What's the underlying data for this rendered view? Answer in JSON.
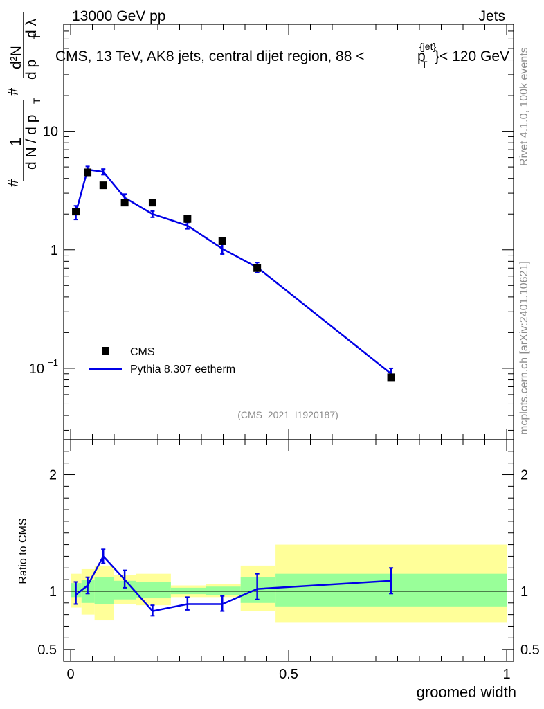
{
  "header": {
    "left": "13000 GeV pp",
    "right": "Jets"
  },
  "side_labels": {
    "rivet": "Rivet 4.1.0,  100k events",
    "mcplots": "mcplots.cern.ch [arXiv:2401.10621]"
  },
  "colors": {
    "mc_line": "#0000e6",
    "band_outer": "#ffff99",
    "band_inner": "#99ff99",
    "data_marker": "#000000"
  },
  "chart_data": [
    {
      "type": "line",
      "panel": "main",
      "title_prefix": "CMS, 13 TeV, AK8 jets, central dijet region, 88 <",
      "title_p": "p",
      "title_sup": "{jet}",
      "title_sub": "T",
      "title_suffix": "}< 120 GeV",
      "analysis_id": "(CMS_2021_I1920187)",
      "xlabel": "groomed width",
      "ylabel_parts": {
        "hash": "#",
        "one": "1",
        "dn_dpt": "d N / d p",
        "t": "T",
        "num": "d²N",
        "den": "d p",
        "den_t": "T",
        "dlambda": "d λ"
      },
      "yscale": "log",
      "ylim": [
        0.025,
        80
      ],
      "xlim": [
        0,
        1
      ],
      "yticks": [
        {
          "v": 0.1,
          "label_base": "10",
          "label_exp": "−1"
        },
        {
          "v": 1,
          "label_base": "1",
          "label_exp": ""
        },
        {
          "v": 10,
          "label_base": "10",
          "label_exp": ""
        }
      ],
      "legend": {
        "position": "bottom-left",
        "data": "CMS",
        "mc": "Pythia 8.307 eetherm"
      },
      "data_series": {
        "name": "CMS",
        "x": [
          0.012,
          0.039,
          0.075,
          0.124,
          0.188,
          0.268,
          0.348,
          0.428,
          0.735
        ],
        "y": [
          2.1,
          4.5,
          3.5,
          2.5,
          2.5,
          1.82,
          1.18,
          0.7,
          0.084
        ]
      },
      "mc_series": {
        "name": "Pythia 8.307 eetherm",
        "x": [
          0.012,
          0.039,
          0.075,
          0.124,
          0.188,
          0.268,
          0.348,
          0.428,
          0.735
        ],
        "y": [
          2.05,
          4.75,
          4.55,
          2.75,
          2.0,
          1.6,
          1.02,
          0.71,
          0.09
        ],
        "err_lo": [
          1.8,
          4.45,
          4.3,
          2.55,
          1.88,
          1.5,
          0.92,
          0.64,
          0.082
        ],
        "err_hi": [
          2.35,
          5.05,
          4.8,
          2.95,
          2.12,
          1.7,
          1.12,
          0.78,
          0.1
        ]
      }
    },
    {
      "type": "line",
      "panel": "ratio",
      "ylabel": "Ratio to CMS",
      "ylim": [
        0.4,
        2.3
      ],
      "yticks": [
        {
          "v": 0.5,
          "label": "0.5"
        },
        {
          "v": 1,
          "label": "1"
        },
        {
          "v": 2,
          "label": "2"
        }
      ],
      "xticks": [
        {
          "v": 0,
          "label": "0"
        },
        {
          "v": 0.5,
          "label": "0.5"
        },
        {
          "v": 1,
          "label": "1"
        }
      ],
      "bands": [
        {
          "x0": 0.0,
          "x1": 0.025,
          "outer": [
            0.86,
            1.15
          ],
          "inner": [
            0.95,
            1.07
          ]
        },
        {
          "x0": 0.025,
          "x1": 0.055,
          "outer": [
            0.8,
            1.19
          ],
          "inner": [
            0.9,
            1.1
          ]
        },
        {
          "x0": 0.055,
          "x1": 0.1,
          "outer": [
            0.75,
            1.22
          ],
          "inner": [
            0.89,
            1.12
          ]
        },
        {
          "x0": 0.1,
          "x1": 0.15,
          "outer": [
            0.89,
            1.14
          ],
          "inner": [
            0.93,
            1.09
          ]
        },
        {
          "x0": 0.15,
          "x1": 0.23,
          "outer": [
            0.88,
            1.15
          ],
          "inner": [
            0.94,
            1.08
          ]
        },
        {
          "x0": 0.23,
          "x1": 0.31,
          "outer": [
            0.95,
            1.05
          ],
          "inner": [
            0.975,
            1.03
          ]
        },
        {
          "x0": 0.31,
          "x1": 0.39,
          "outer": [
            0.95,
            1.06
          ],
          "inner": [
            0.97,
            1.04
          ]
        },
        {
          "x0": 0.39,
          "x1": 0.47,
          "outer": [
            0.83,
            1.22
          ],
          "inner": [
            0.9,
            1.12
          ]
        },
        {
          "x0": 0.47,
          "x1": 1.0,
          "outer": [
            0.73,
            1.4
          ],
          "inner": [
            0.87,
            1.15
          ]
        }
      ],
      "mc_series": {
        "x": [
          0.012,
          0.039,
          0.075,
          0.124,
          0.188,
          0.268,
          0.348,
          0.428,
          0.735
        ],
        "y": [
          0.97,
          1.05,
          1.3,
          1.1,
          0.83,
          0.89,
          0.89,
          1.02,
          1.09
        ],
        "err_lo": [
          0.89,
          0.98,
          1.24,
          1.03,
          0.79,
          0.84,
          0.83,
          0.93,
          0.98
        ],
        "err_hi": [
          1.08,
          1.12,
          1.36,
          1.18,
          0.88,
          0.95,
          0.96,
          1.15,
          1.2
        ]
      }
    }
  ]
}
